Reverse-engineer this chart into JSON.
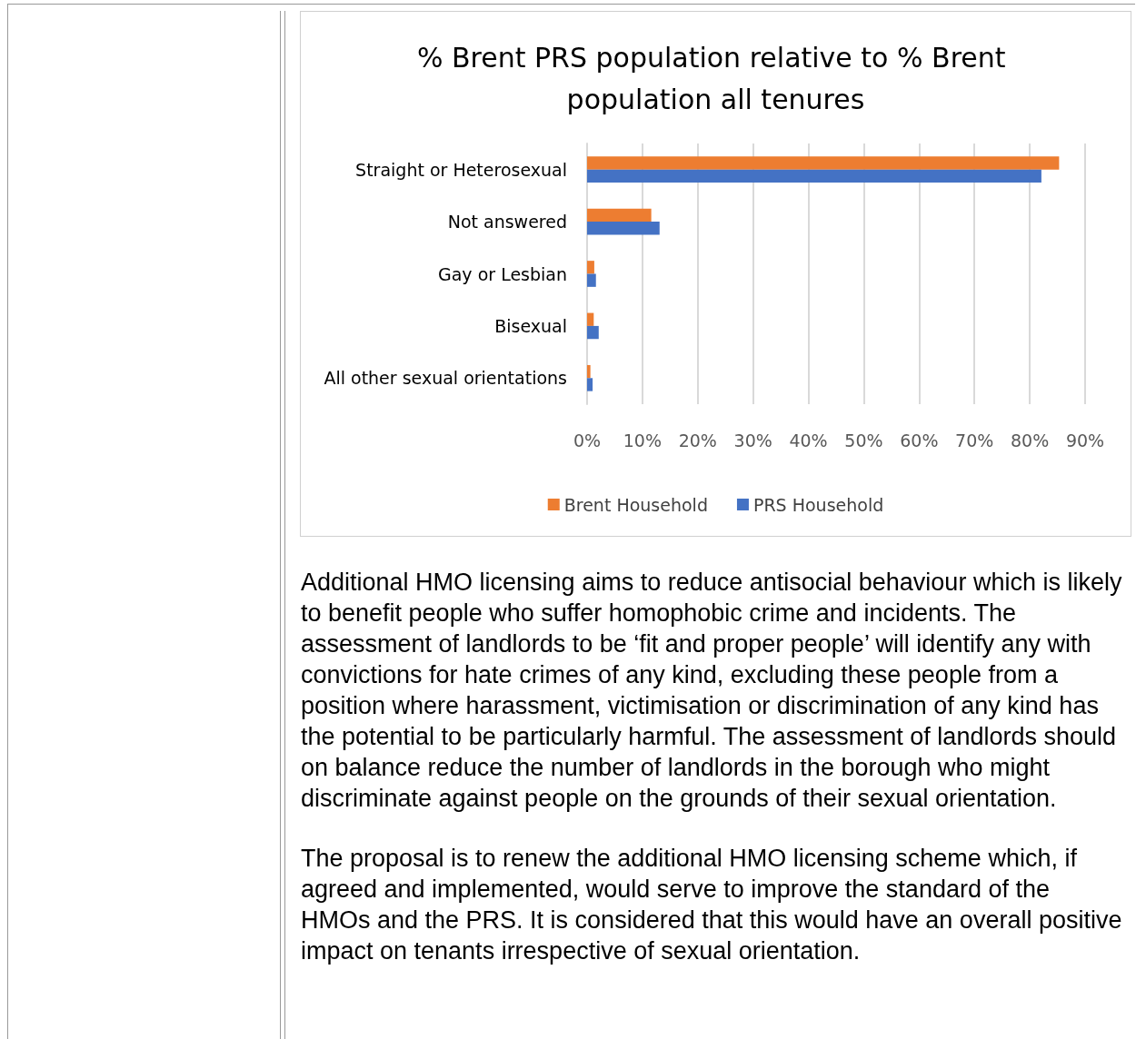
{
  "chart_data": {
    "type": "bar",
    "orientation": "horizontal",
    "title": "% Brent PRS population relative to % Brent population all tenures",
    "categories": [
      "Straight or Heterosexual",
      "Not answered",
      "Gay or Lesbian",
      "Bisexual",
      "All other sexual orientations"
    ],
    "series": [
      {
        "name": "Brent Household",
        "color": "#ed7d31",
        "values": [
          85.3,
          11.6,
          1.3,
          1.2,
          0.6
        ]
      },
      {
        "name": "PRS Household",
        "color": "#4472c4",
        "values": [
          82.1,
          13.1,
          1.6,
          2.1,
          1.0
        ]
      }
    ],
    "xlim": [
      0,
      90
    ],
    "xticks": [
      {
        "value": 0,
        "label": "0%"
      },
      {
        "value": 10,
        "label": "10%"
      },
      {
        "value": 20,
        "label": "20%"
      },
      {
        "value": 30,
        "label": "30%"
      },
      {
        "value": 40,
        "label": "40%"
      },
      {
        "value": 50,
        "label": "50%"
      },
      {
        "value": 60,
        "label": "60%"
      },
      {
        "value": 70,
        "label": "70%"
      },
      {
        "value": 80,
        "label": "80%"
      },
      {
        "value": 90,
        "label": "90%"
      }
    ],
    "grid": "x",
    "legend": "bottom",
    "annotations": [
      "Additional HMO licensing aims to reduce antisocial behaviour which is likely to benefit people who suffer homophobic crime and incidents. The assessment of landlords to be ‘fit and proper people’ will identify any with convictions for hate crimes of any kind, excluding these people from a position where harassment, victimisation or discrimination of any kind has the potential to be particularly harmful. The assessment of landlords should on balance reduce the number of landlords in the borough who might discriminate against people on the grounds of their sexual orientation.",
      "The proposal is to renew the additional HMO licensing scheme which, if agreed and implemented, would serve to improve the standard of the HMOs and the PRS. It is considered that this would have an overall positive impact on tenants irrespective of sexual orientation."
    ]
  }
}
